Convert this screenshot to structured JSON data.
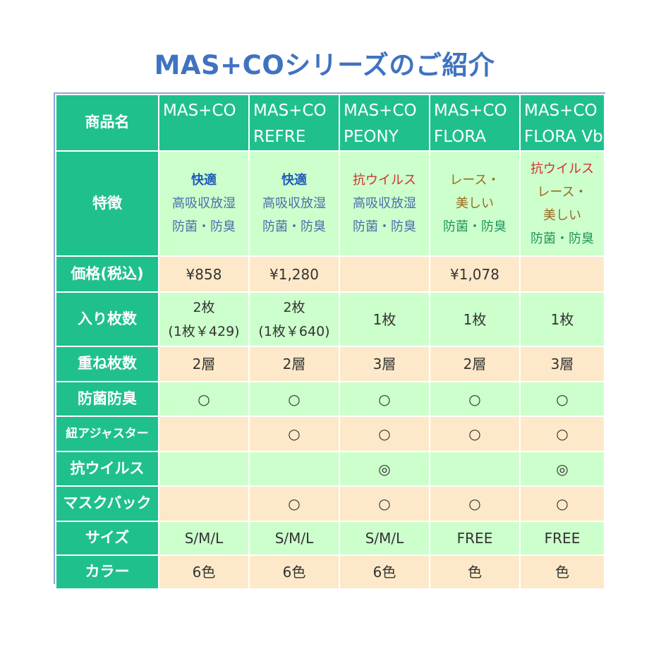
{
  "title": "MAS+COシリーズのご紹介",
  "labels": {
    "product": "商品名",
    "features": "特徴",
    "price": "価格(税込)",
    "count": "入り枚数",
    "layers": "重ね枚数",
    "antibac": "防菌防臭",
    "adjuster": "紐アジャスター",
    "antivirus": "抗ウイルス",
    "maskback": "マスクバック",
    "size": "サイズ",
    "color": "カラー"
  },
  "products": [
    {
      "name1": "MAS+CO",
      "name2": "",
      "feat": [
        "快適",
        "高吸収放湿",
        "防菌・防臭",
        ""
      ],
      "price": "¥858",
      "count1": "2枚",
      "count2": "(1枚￥429)",
      "layers": "2層",
      "antibac": "○",
      "adjuster": "",
      "antivirus": "",
      "maskback": "",
      "size": "S/M/L",
      "color": "6色"
    },
    {
      "name1": "MAS+CO",
      "name2": "REFRE",
      "feat": [
        "快適",
        "高吸収放湿",
        "防菌・防臭",
        ""
      ],
      "price": "¥1,280",
      "count1": "2枚",
      "count2": "(1枚￥640)",
      "layers": "2層",
      "antibac": "○",
      "adjuster": "○",
      "antivirus": "",
      "maskback": "○",
      "size": "S/M/L",
      "color": "6色"
    },
    {
      "name1": "MAS+CO",
      "name2": "PEONY",
      "feat": [
        "抗ウイルス",
        "高吸収放湿",
        "防菌・防臭",
        ""
      ],
      "price": "",
      "count1": "1枚",
      "count2": "",
      "layers": "3層",
      "antibac": "○",
      "adjuster": "○",
      "antivirus": "◎",
      "maskback": "○",
      "size": "S/M/L",
      "color": "6色"
    },
    {
      "name1": "MAS+CO",
      "name2": "FLORA",
      "feat": [
        "レース・",
        "美しい",
        "防菌・防臭",
        ""
      ],
      "price": "¥1,078",
      "count1": "1枚",
      "count2": "",
      "layers": "2層",
      "antibac": "○",
      "adjuster": "○",
      "antivirus": "",
      "maskback": "○",
      "size": "FREE",
      "color": "色"
    },
    {
      "name1": "MAS+CO",
      "name2": "FLORA Vb",
      "feat": [
        "抗ウイルス",
        "レース・",
        "美しい",
        "防菌・防臭"
      ],
      "price": "",
      "count1": "1枚",
      "count2": "",
      "layers": "3層",
      "antibac": "○",
      "adjuster": "○",
      "antivirus": "◎",
      "maskback": "○",
      "size": "FREE",
      "color": "色"
    }
  ]
}
